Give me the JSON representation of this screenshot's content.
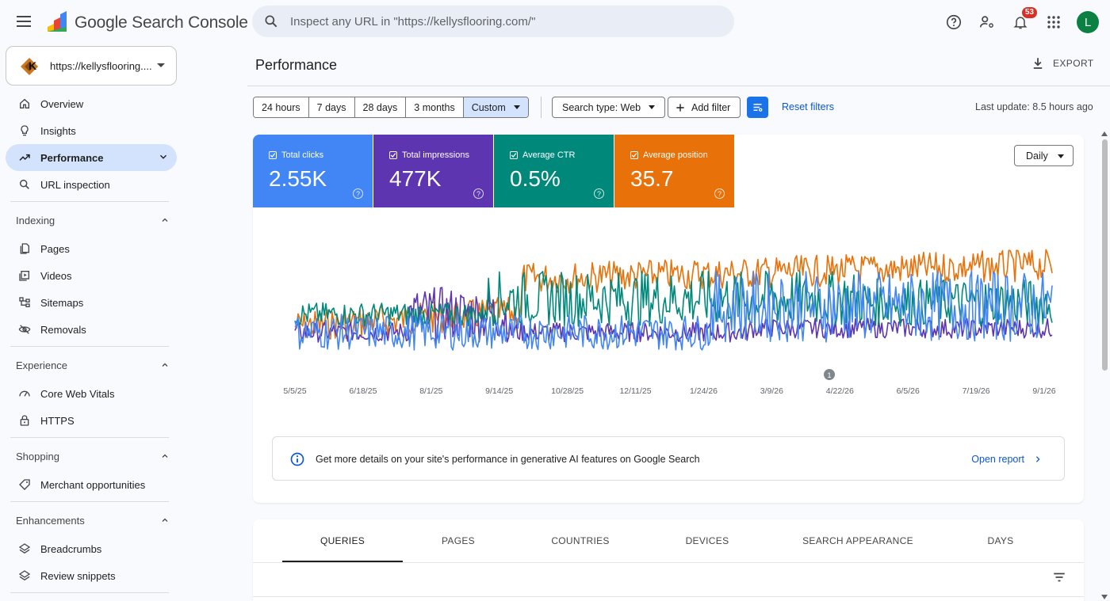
{
  "app": {
    "product_name": "Google Search Console",
    "notification_count": "53",
    "avatar_letter": "L"
  },
  "search": {
    "placeholder": "Inspect any URL in \"https://kellysflooring.com/\""
  },
  "property": {
    "url": "https://kellysflooring...."
  },
  "sidebar": {
    "top_items": [
      {
        "label": "Overview",
        "icon": "home-icon"
      },
      {
        "label": "Insights",
        "icon": "lightbulb-icon"
      },
      {
        "label": "Performance",
        "icon": "trending-up-icon",
        "active": true
      },
      {
        "label": "URL inspection",
        "icon": "search-icon"
      }
    ],
    "sections": [
      {
        "title": "Indexing",
        "items": [
          {
            "label": "Pages",
            "icon": "pages-icon"
          },
          {
            "label": "Videos",
            "icon": "video-icon"
          },
          {
            "label": "Sitemaps",
            "icon": "sitemap-icon"
          },
          {
            "label": "Removals",
            "icon": "visibility-off-icon"
          }
        ]
      },
      {
        "title": "Experience",
        "items": [
          {
            "label": "Core Web Vitals",
            "icon": "speed-icon"
          },
          {
            "label": "HTTPS",
            "icon": "lock-icon"
          }
        ]
      },
      {
        "title": "Shopping",
        "items": [
          {
            "label": "Merchant opportunities",
            "icon": "tag-icon"
          }
        ]
      },
      {
        "title": "Enhancements",
        "items": [
          {
            "label": "Breadcrumbs",
            "icon": "layers-icon"
          },
          {
            "label": "Review snippets",
            "icon": "layers-icon"
          }
        ]
      }
    ]
  },
  "header": {
    "title": "Performance",
    "export_label": "EXPORT"
  },
  "filters": {
    "date_ranges": [
      "24 hours",
      "7 days",
      "28 days",
      "3 months",
      "Custom"
    ],
    "selected_date_range": "Custom",
    "search_type": "Search type: Web",
    "add_filter": "Add filter",
    "reset": "Reset filters",
    "last_update": "Last update: 8.5 hours ago"
  },
  "metrics": [
    {
      "label": "Total clicks",
      "value": "2.55K",
      "color": "#4285f4"
    },
    {
      "label": "Total impressions",
      "value": "477K",
      "color": "#5e35b1"
    },
    {
      "label": "Average CTR",
      "value": "0.5%",
      "color": "#00897b"
    },
    {
      "label": "Average position",
      "value": "35.7",
      "color": "#e8710a"
    }
  ],
  "granularity": "Daily",
  "chart_data": {
    "type": "line",
    "x_ticks": [
      "5/5/25",
      "6/18/25",
      "8/1/25",
      "9/14/25",
      "10/28/25",
      "12/11/25",
      "1/24/26",
      "3/9/26",
      "4/22/26",
      "6/5/26",
      "7/19/26",
      "9/1/26"
    ],
    "annotation": "1",
    "series": [
      {
        "name": "Total clicks",
        "color": "#4285f4"
      },
      {
        "name": "Total impressions",
        "color": "#5e35b1"
      },
      {
        "name": "Average CTR",
        "color": "#00897b"
      },
      {
        "name": "Average position",
        "color": "#e8710a"
      }
    ],
    "grid": false
  },
  "ai_banner": {
    "text": "Get more details on your site's performance in generative AI features on Google Search",
    "link": "Open report"
  },
  "tabs": [
    "QUERIES",
    "PAGES",
    "COUNTRIES",
    "DEVICES",
    "SEARCH APPEARANCE",
    "DAYS"
  ],
  "active_tab": "QUERIES"
}
